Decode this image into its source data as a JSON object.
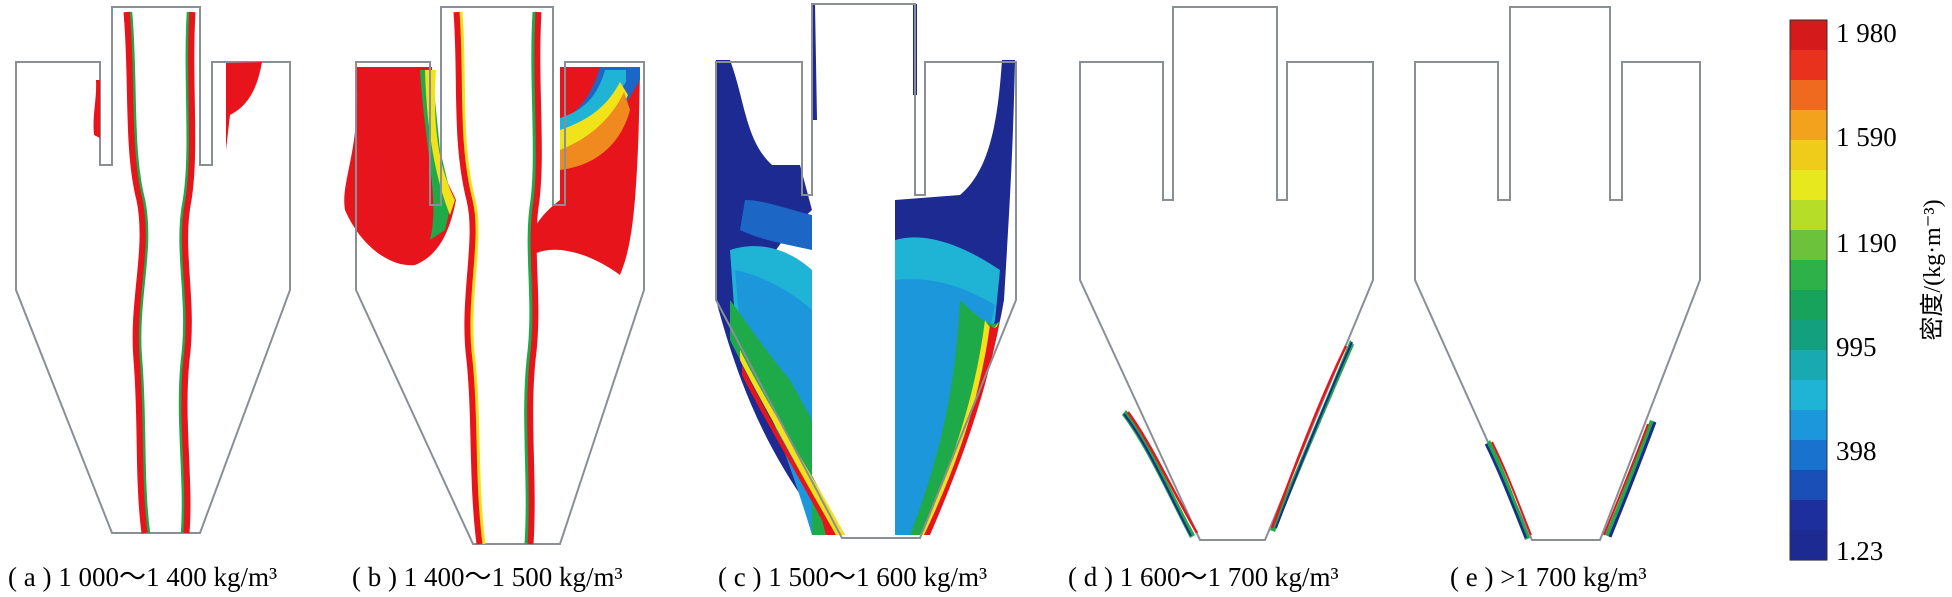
{
  "panels": [
    {
      "id": "a",
      "caption": "( a ) 1 000～1 400 kg/m³"
    },
    {
      "id": "b",
      "caption": "( b ) 1 400～1 500 kg/m³"
    },
    {
      "id": "c",
      "caption": "( c ) 1 500～1 600 kg/m³"
    },
    {
      "id": "d",
      "caption": "( d ) 1 600～1 700 kg/m³"
    },
    {
      "id": "e",
      "caption": "( e ) >1 700 kg/m³"
    }
  ],
  "colorbar": {
    "label": "密度/(kg·m⁻³)",
    "ticks": [
      "1 980",
      "1 590",
      "1 190",
      "995",
      "398",
      "1.23"
    ],
    "colors": [
      "#d41a1a",
      "#e8321e",
      "#ef6a1e",
      "#f2a21c",
      "#f0cc1a",
      "#e8e81e",
      "#b6dd28",
      "#6cc23a",
      "#2fb14a",
      "#17a35c",
      "#12a07e",
      "#18aab0",
      "#1fb4d6",
      "#1c97dc",
      "#1a72cf",
      "#1a4fb8",
      "#1d2f9c",
      "#1c2a92"
    ]
  },
  "colors": {
    "red": "#e8141c",
    "orange": "#f08a1e",
    "yellow": "#f2e21a",
    "green": "#1faa4a",
    "cyan": "#1fb4d6",
    "blue": "#1c67c6",
    "navy": "#1c2a92",
    "outline": "#8a8f96"
  }
}
